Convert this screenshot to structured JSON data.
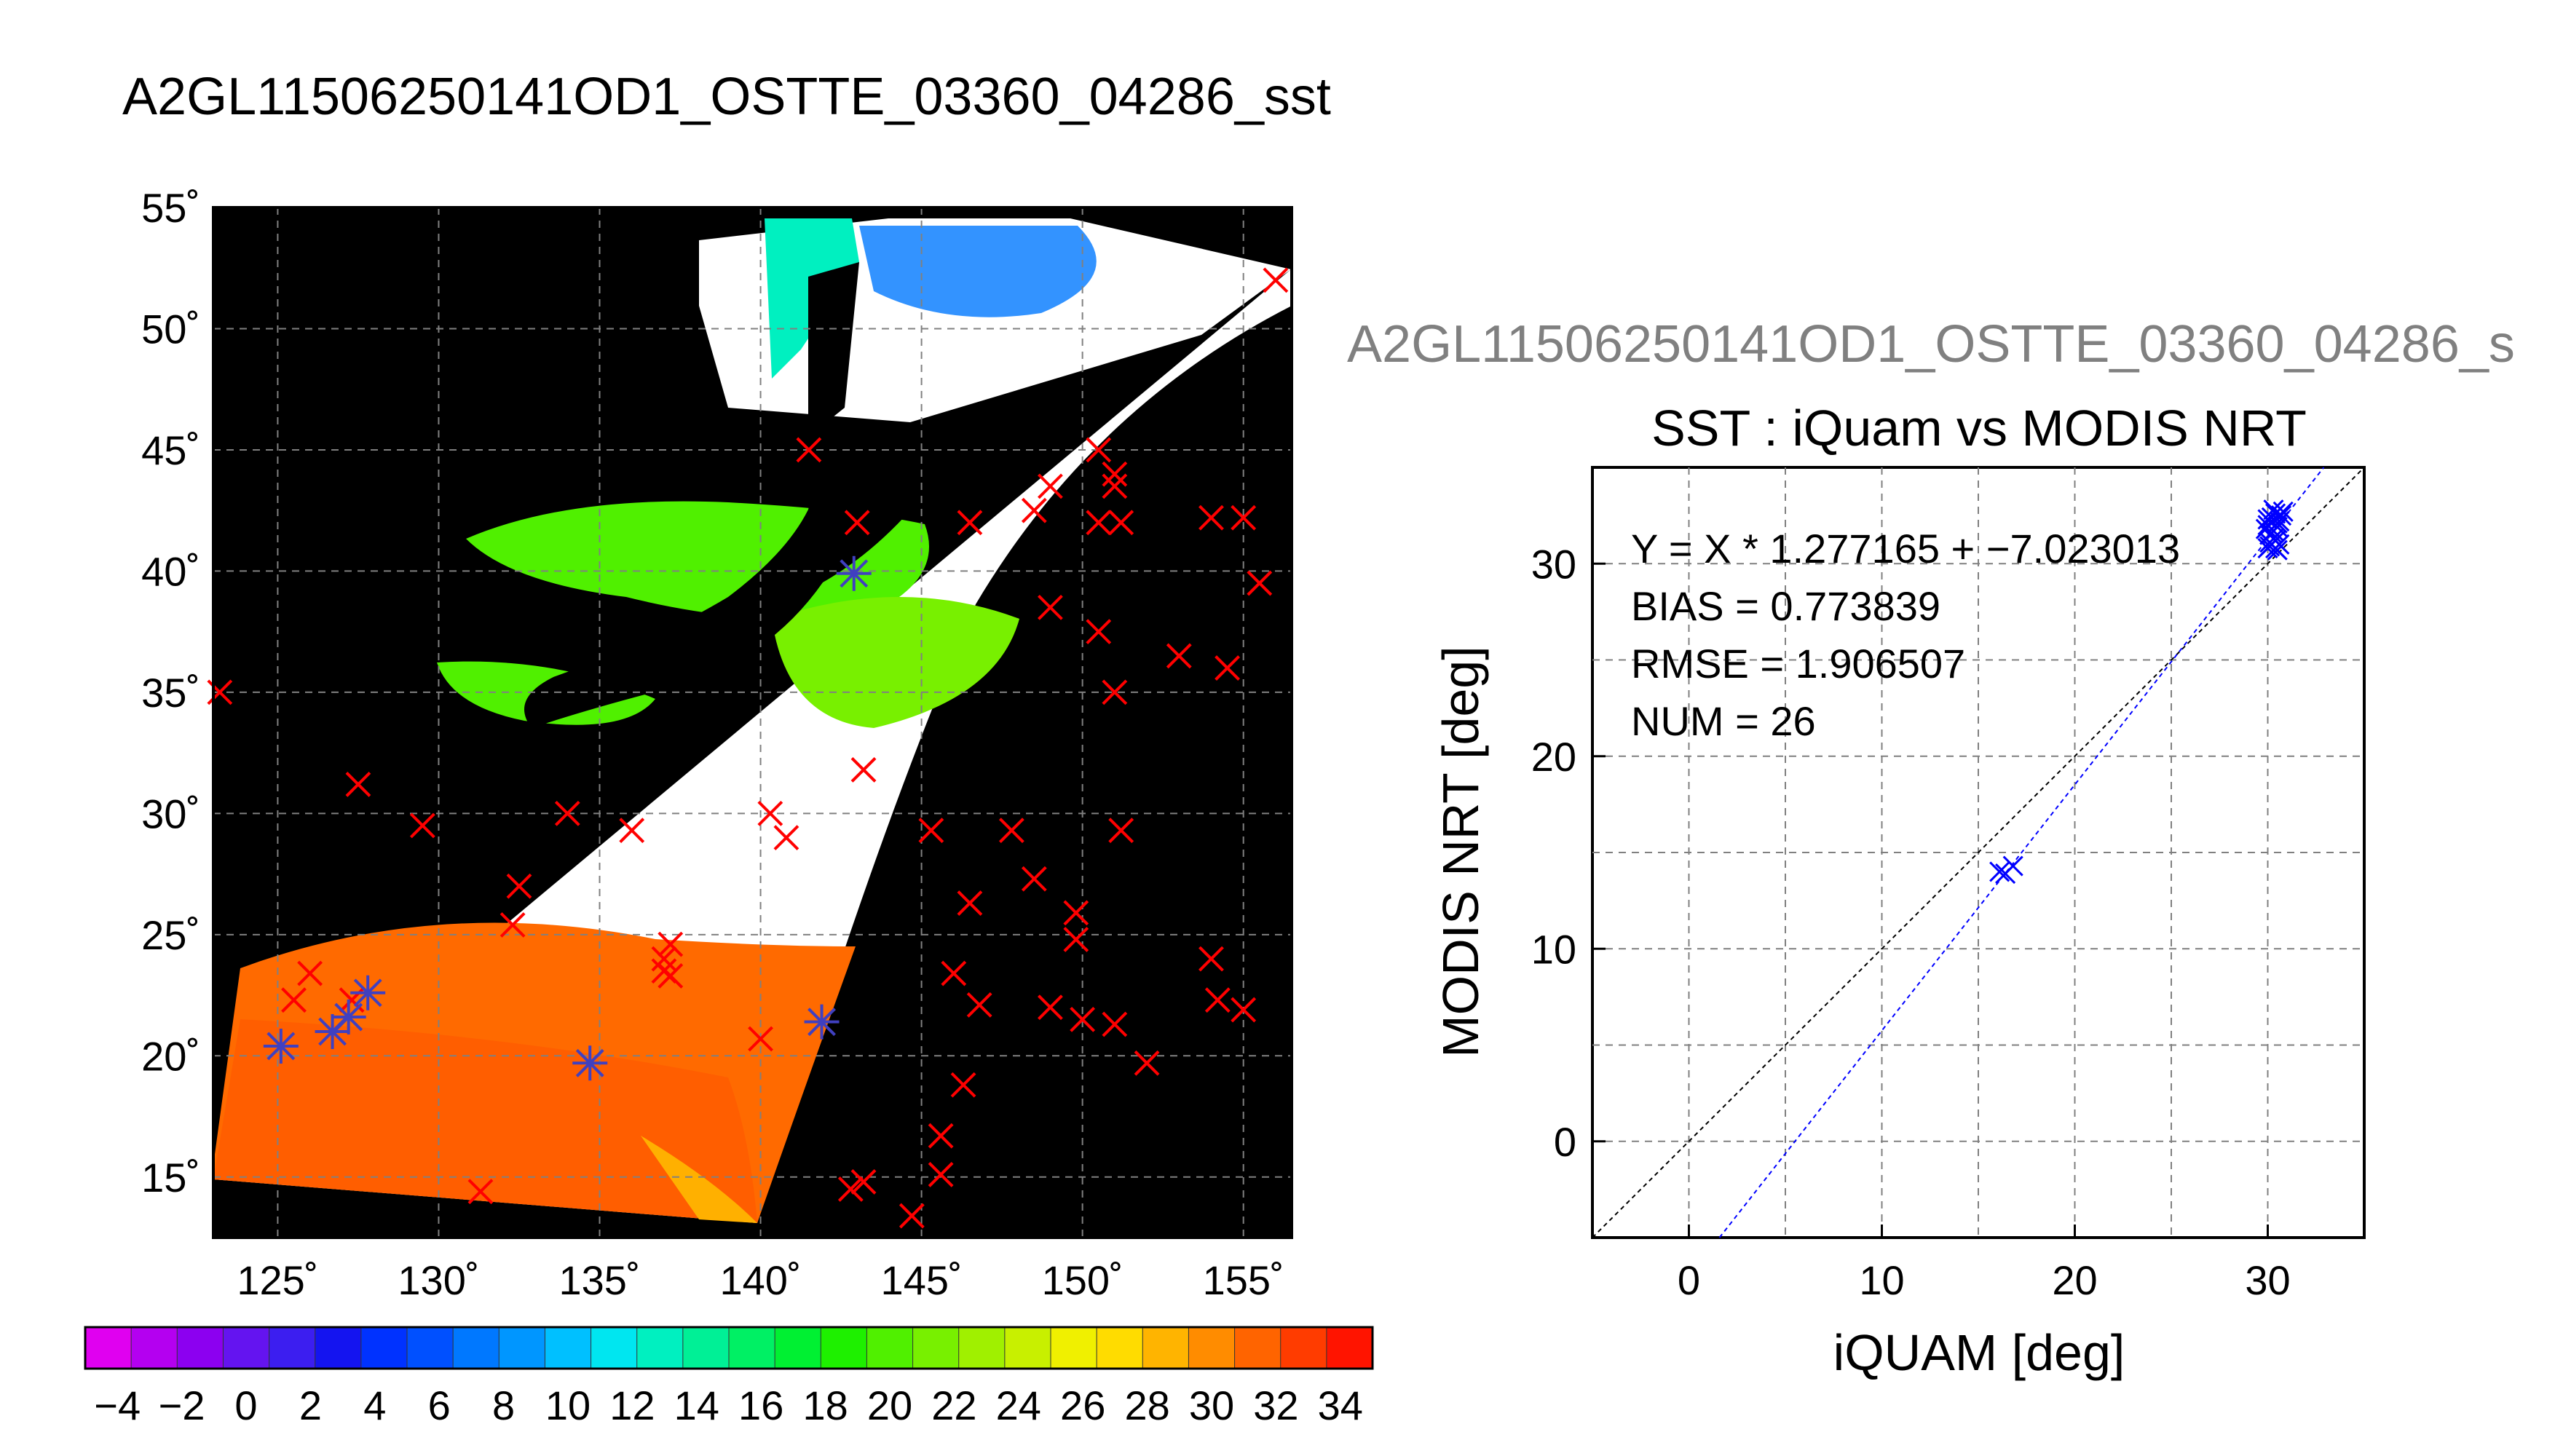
{
  "figure": {
    "title": "A2GL11506250141OD1_OSTTE_03360_04286_sst",
    "secondary_title": "A2GL11506250141OD1_OSTTE_03360_04286_s"
  },
  "colors": {
    "map_background": "#000000",
    "grid": "#808080",
    "iquam_marker": "#ff0000",
    "matched_marker": "#4040c0",
    "scatter_points": "#0000ff",
    "fit_line": "#0000ff",
    "identity_line": "#000000"
  },
  "chart_data": [
    {
      "type": "map",
      "name": "sst_map",
      "x_ticks": [
        125,
        130,
        135,
        140,
        145,
        150,
        155
      ],
      "x_tick_labels": [
        "125˚",
        "130˚",
        "135˚",
        "140˚",
        "145˚",
        "150˚",
        "155˚"
      ],
      "y_ticks": [
        15,
        20,
        25,
        30,
        35,
        40,
        45,
        50,
        55
      ],
      "y_tick_labels": [
        "15˚",
        "20˚",
        "25˚",
        "30˚",
        "35˚",
        "40˚",
        "45˚",
        "50˚",
        "55˚"
      ],
      "xlim": [
        123,
        156.5
      ],
      "ylim": [
        12.5,
        55
      ],
      "grid": true,
      "iquam_points": [
        [
          156,
          52
        ],
        [
          123.2,
          35
        ],
        [
          141.5,
          45
        ],
        [
          143,
          42
        ],
        [
          146.5,
          42
        ],
        [
          148.5,
          42.5
        ],
        [
          149,
          43.5
        ],
        [
          150.5,
          45
        ],
        [
          151,
          44
        ],
        [
          151,
          43.5
        ],
        [
          150.5,
          42
        ],
        [
          151.2,
          42
        ],
        [
          154,
          42.2
        ],
        [
          155,
          42.2
        ],
        [
          155.5,
          39.5
        ],
        [
          149,
          38.5
        ],
        [
          150.5,
          37.5
        ],
        [
          153,
          36.5
        ],
        [
          154.5,
          36
        ],
        [
          151,
          35
        ],
        [
          127.5,
          31.2
        ],
        [
          129.5,
          29.5
        ],
        [
          134,
          30
        ],
        [
          136,
          29.3
        ],
        [
          140.3,
          30
        ],
        [
          140.8,
          29
        ],
        [
          143.2,
          31.8
        ],
        [
          145.3,
          29.3
        ],
        [
          147.8,
          29.3
        ],
        [
          151.2,
          29.3
        ],
        [
          146.5,
          26.3
        ],
        [
          148.5,
          27.3
        ],
        [
          149.8,
          25.9
        ],
        [
          149.8,
          24.8
        ],
        [
          132.5,
          27
        ],
        [
          132.3,
          25.4
        ],
        [
          137.2,
          24.6
        ],
        [
          137,
          24
        ],
        [
          137,
          23.5
        ],
        [
          137.2,
          23.3
        ],
        [
          146,
          23.4
        ],
        [
          154,
          24
        ],
        [
          126,
          23.4
        ],
        [
          125.5,
          22.3
        ],
        [
          127.3,
          22.3
        ],
        [
          146.8,
          22.1
        ],
        [
          149,
          22
        ],
        [
          150,
          21.5
        ],
        [
          151,
          21.3
        ],
        [
          154.2,
          22.3
        ],
        [
          155,
          21.9
        ],
        [
          140,
          20.7
        ],
        [
          152,
          19.7
        ],
        [
          146.3,
          18.8
        ],
        [
          145.6,
          16.7
        ],
        [
          145.6,
          15.1
        ],
        [
          131.3,
          14.4
        ],
        [
          143.2,
          14.8
        ],
        [
          142.8,
          14.5
        ],
        [
          144.7,
          13.4
        ]
      ],
      "matched_points": [
        [
          125.1,
          20.4
        ],
        [
          126.7,
          21.0
        ],
        [
          127.2,
          21.6
        ],
        [
          127.8,
          22.6
        ],
        [
          134.7,
          19.7
        ],
        [
          141.9,
          21.4
        ],
        [
          142.9,
          39.9
        ]
      ],
      "colorbar": {
        "min": -5,
        "max": 35,
        "tick_labels": [
          "−4",
          "−2",
          "0",
          "2",
          "4",
          "6",
          "8",
          "10",
          "12",
          "14",
          "16",
          "18",
          "20",
          "22",
          "24",
          "26",
          "28",
          "30",
          "32",
          "34"
        ],
        "colors": [
          "#e000f0",
          "#b400f0",
          "#8c00f0",
          "#6414f0",
          "#3c1ef0",
          "#1414f0",
          "#0032ff",
          "#0050ff",
          "#0078ff",
          "#0096ff",
          "#00c0ff",
          "#00e6f0",
          "#00f0c0",
          "#00f096",
          "#00f064",
          "#00f032",
          "#1ef000",
          "#50f000",
          "#78f000",
          "#a0f000",
          "#c8f000",
          "#f0f000",
          "#ffdc00",
          "#ffb400",
          "#ff8c00",
          "#ff6400",
          "#ff3c00",
          "#ff1400"
        ]
      }
    },
    {
      "type": "scatter",
      "name": "iquam_vs_modis",
      "title": "SST : iQuam vs MODIS NRT",
      "xlabel": "iQUAM [deg]",
      "ylabel": "MODIS NRT [deg]",
      "xlim": [
        -5,
        35
      ],
      "ylim": [
        -5,
        35
      ],
      "x_ticks": [
        0,
        10,
        20,
        30
      ],
      "y_ticks": [
        0,
        10,
        20,
        30
      ],
      "grid": true,
      "stats": [
        "Y = X * 1.277165 + −7.023013",
        "BIAS = 0.773839",
        "RMSE = 1.906507",
        "NUM = 26"
      ],
      "fit": {
        "slope": 1.277165,
        "intercept": -7.023013
      },
      "identity_line": true,
      "points": [
        [
          16.1,
          14.0
        ],
        [
          16.8,
          14.3
        ],
        [
          16.4,
          13.9
        ],
        [
          30.0,
          30.8
        ],
        [
          30.2,
          31.0
        ],
        [
          30.4,
          31.2
        ],
        [
          30.1,
          31.5
        ],
        [
          30.3,
          31.7
        ],
        [
          30.5,
          31.9
        ],
        [
          30.0,
          32.0
        ],
        [
          30.6,
          32.2
        ],
        [
          30.2,
          32.4
        ],
        [
          30.4,
          32.6
        ],
        [
          30.7,
          32.5
        ],
        [
          30.1,
          30.9
        ],
        [
          30.5,
          30.7
        ],
        [
          30.3,
          31.3
        ],
        [
          29.9,
          31.8
        ],
        [
          30.6,
          31.0
        ],
        [
          30.0,
          32.3
        ],
        [
          30.4,
          30.8
        ],
        [
          30.2,
          31.6
        ],
        [
          30.8,
          32.7
        ],
        [
          30.5,
          32.1
        ],
        [
          30.1,
          31.1
        ],
        [
          30.3,
          32.8
        ]
      ]
    }
  ]
}
